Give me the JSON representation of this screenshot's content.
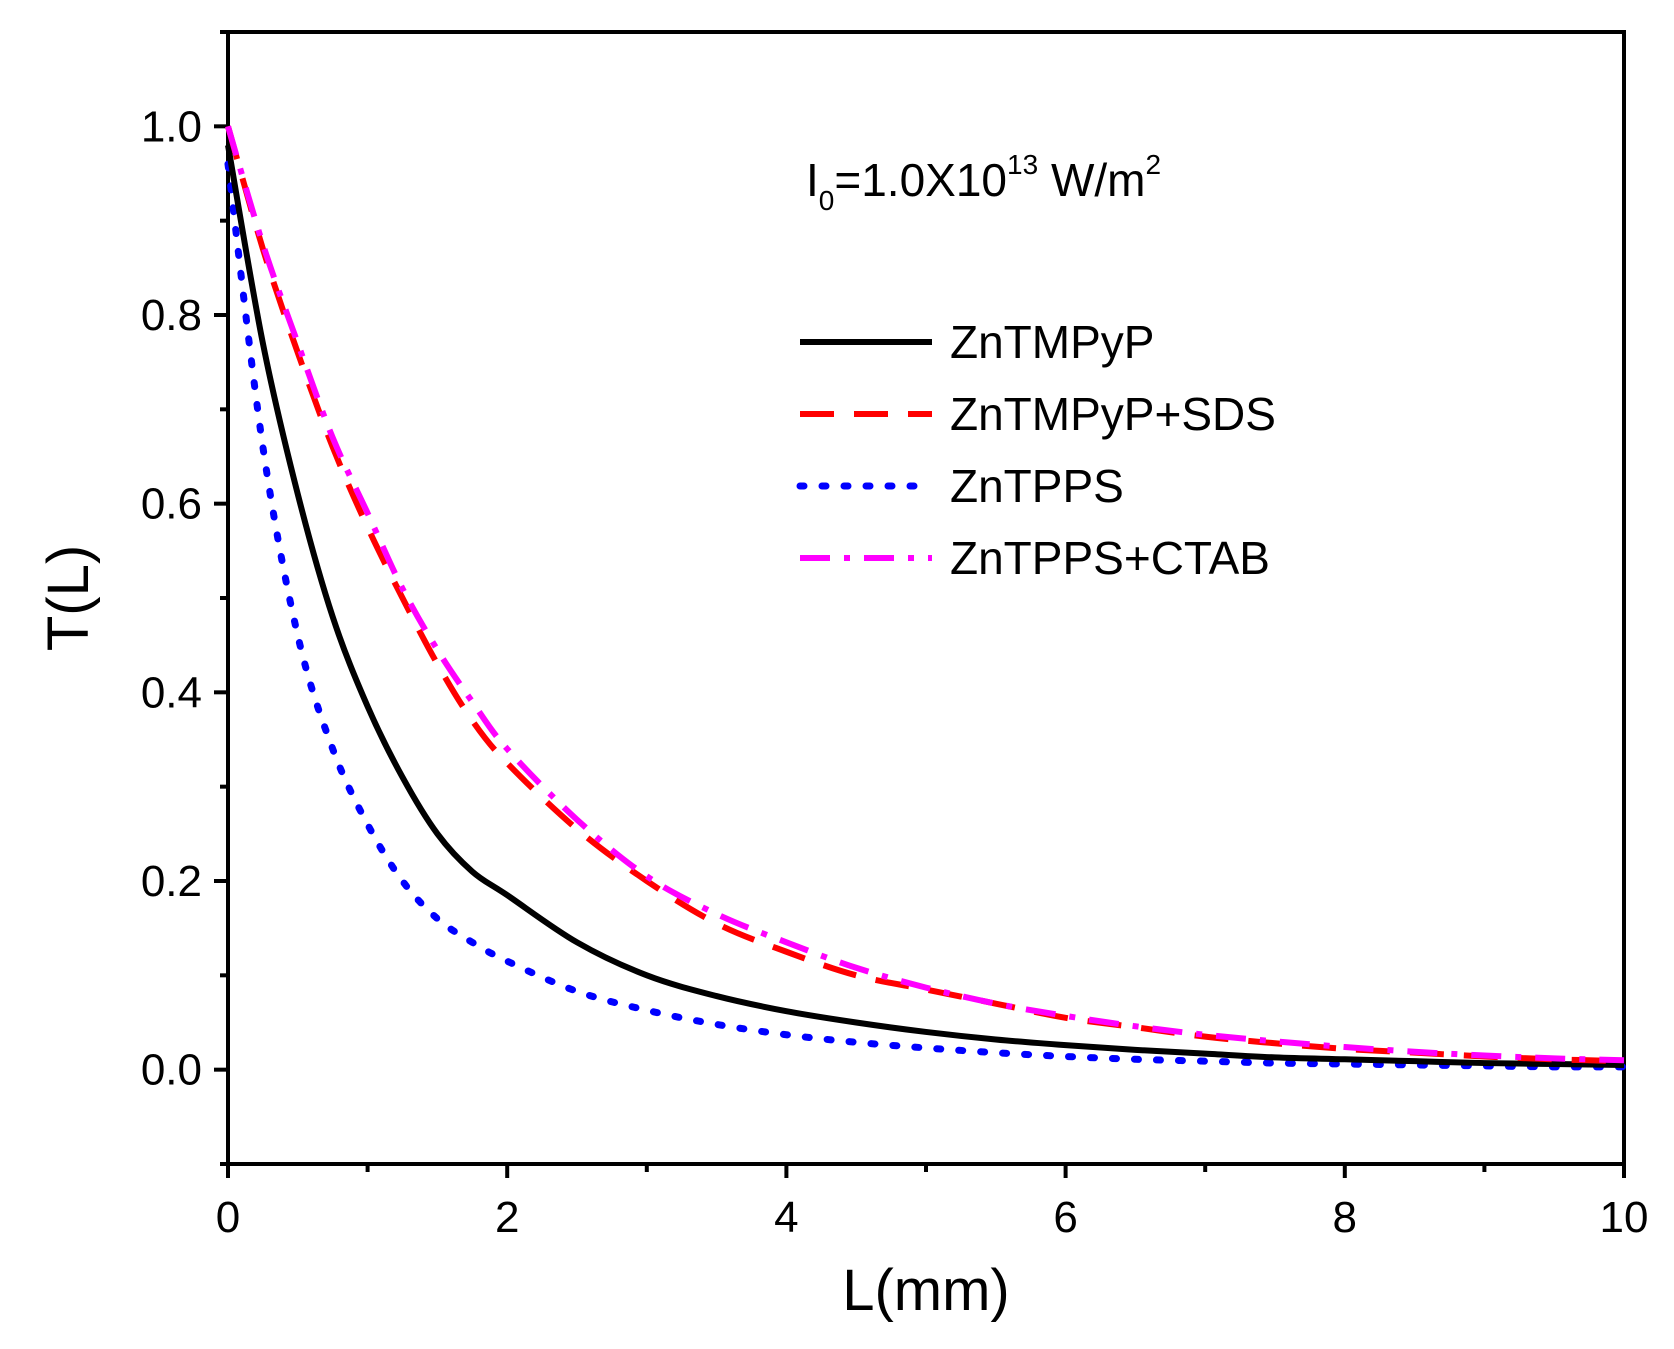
{
  "chart_data": {
    "type": "line",
    "xlabel": "L(mm)",
    "ylabel": "T(L)",
    "xlim": [
      0,
      10
    ],
    "ylim": [
      -0.1,
      1.1
    ],
    "x_ticks": [
      0,
      2,
      4,
      6,
      8,
      10
    ],
    "y_ticks": [
      0.0,
      0.2,
      0.4,
      0.6,
      0.8,
      1.0
    ],
    "x_tick_labels": [
      "0",
      "2",
      "4",
      "6",
      "8",
      "10"
    ],
    "y_tick_labels": [
      "0.0",
      "0.2",
      "0.4",
      "0.6",
      "0.8",
      "1.0"
    ],
    "grid": false,
    "legend_position": "upper-right",
    "annotation": {
      "base": "I",
      "sub": "0",
      "mid": "=1.0X10",
      "sup": "13",
      "unit": " W/m",
      "unit_sup": "2"
    },
    "x": [
      0,
      0.25,
      0.5,
      0.75,
      1,
      1.25,
      1.5,
      1.75,
      2,
      2.5,
      3,
      3.5,
      4,
      4.5,
      5,
      5.5,
      6,
      6.5,
      7,
      7.5,
      8,
      8.5,
      9,
      9.5,
      10
    ],
    "series": [
      {
        "name": "ZnTMPyP",
        "color": "#000000",
        "style": "solid",
        "values": [
          0.98,
          0.77,
          0.61,
          0.48,
          0.385,
          0.31,
          0.25,
          0.21,
          0.185,
          0.135,
          0.1,
          0.078,
          0.062,
          0.05,
          0.04,
          0.032,
          0.026,
          0.021,
          0.017,
          0.013,
          0.011,
          0.009,
          0.007,
          0.006,
          0.005
        ]
      },
      {
        "name": "ZnTMPyP+SDS",
        "color": "#ff0000",
        "style": "dashed",
        "values": [
          1.0,
          0.87,
          0.76,
          0.66,
          0.575,
          0.5,
          0.43,
          0.37,
          0.325,
          0.255,
          0.2,
          0.155,
          0.125,
          0.1,
          0.085,
          0.07,
          0.055,
          0.045,
          0.035,
          0.028,
          0.022,
          0.018,
          0.014,
          0.011,
          0.009
        ]
      },
      {
        "name": "ZnTPPS",
        "color": "#0000ff",
        "style": "dotted",
        "values": [
          0.96,
          0.66,
          0.46,
          0.34,
          0.26,
          0.2,
          0.16,
          0.135,
          0.115,
          0.083,
          0.063,
          0.048,
          0.037,
          0.029,
          0.023,
          0.018,
          0.014,
          0.011,
          0.009,
          0.007,
          0.006,
          0.005,
          0.004,
          0.003,
          0.003
        ]
      },
      {
        "name": "ZnTPPS+CTAB",
        "color": "#ff00ff",
        "style": "dashdot",
        "values": [
          1.0,
          0.875,
          0.77,
          0.67,
          0.59,
          0.51,
          0.445,
          0.39,
          0.34,
          0.265,
          0.205,
          0.165,
          0.135,
          0.108,
          0.087,
          0.07,
          0.057,
          0.046,
          0.037,
          0.03,
          0.024,
          0.019,
          0.015,
          0.012,
          0.01
        ]
      }
    ]
  }
}
